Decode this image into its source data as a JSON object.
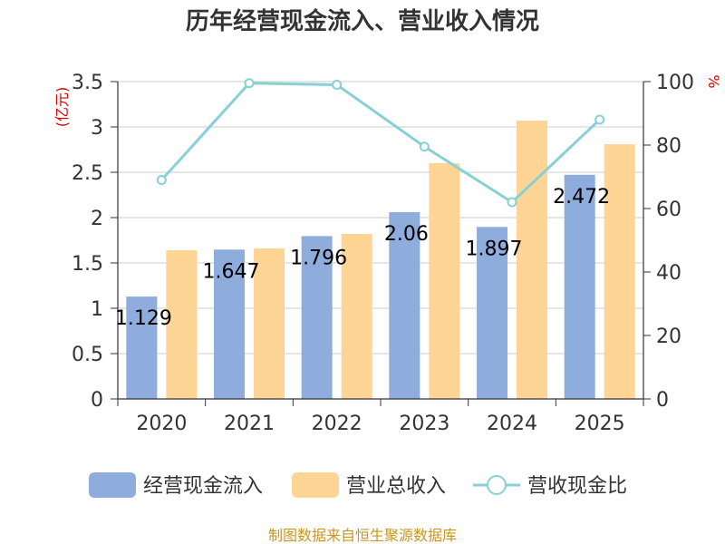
{
  "chart_data": {
    "type": "bar",
    "title": "历年经营现金流入、营业收入情况",
    "categories": [
      "2020",
      "2021",
      "2022",
      "2023",
      "2024",
      "2025"
    ],
    "y_left": {
      "unit": "(亿元)",
      "range": [
        0,
        3.5
      ],
      "ticks": [
        "0",
        "0.5",
        "1",
        "1.5",
        "2",
        "2.5",
        "3",
        "3.5"
      ]
    },
    "y_right": {
      "unit": "%",
      "range": [
        0,
        100
      ],
      "ticks": [
        "0",
        "20",
        "40",
        "60",
        "80",
        "100"
      ]
    },
    "grid": true,
    "legend_position": "bottom",
    "series": [
      {
        "name": "经营现金流入",
        "type": "bar",
        "axis": "left",
        "color": "#8eaddc",
        "values": [
          1.129,
          1.647,
          1.796,
          2.06,
          1.897,
          2.472
        ],
        "labels": [
          "1.129",
          "1.647",
          "1.796",
          "2.06",
          "1.897",
          "2.472"
        ]
      },
      {
        "name": "营业总收入",
        "type": "bar",
        "axis": "left",
        "color": "#fed595",
        "values": [
          1.64,
          1.66,
          1.82,
          2.6,
          3.07,
          2.81
        ]
      },
      {
        "name": "营收现金比",
        "type": "line",
        "axis": "right",
        "color": "#86d0d6",
        "values": [
          69,
          99.5,
          99,
          79.5,
          62,
          88
        ]
      }
    ]
  },
  "source": "制图数据来自恒生聚源数据库"
}
